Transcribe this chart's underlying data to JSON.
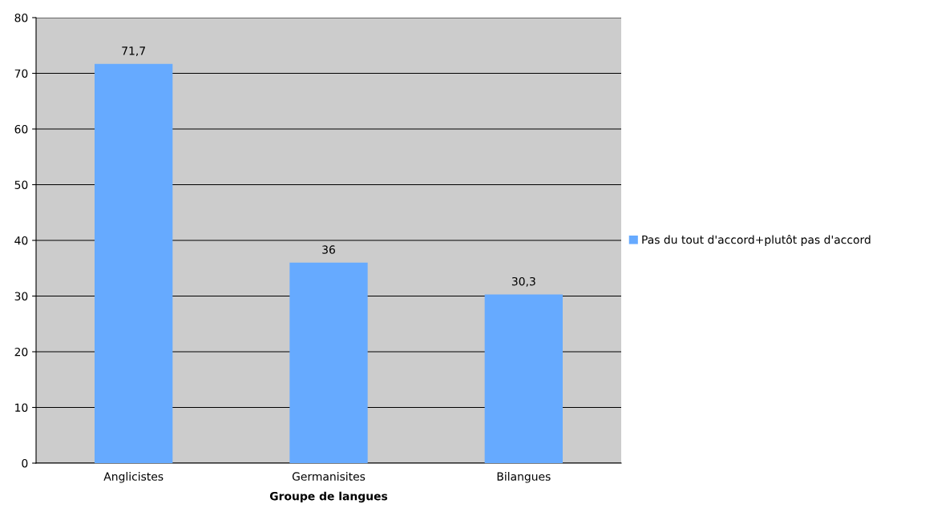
{
  "chart_data": {
    "type": "bar",
    "xlabel": "Groupe de langues",
    "categories": [
      "Anglicistes",
      "Germanisites",
      "Bilangues"
    ],
    "series": [
      {
        "name": "Pas du tout d'accord+plutôt pas d'accord",
        "color": "#66aaff",
        "values": [
          71.7,
          36,
          30.3
        ],
        "value_labels": [
          "71,7",
          "36",
          "30,3"
        ]
      }
    ],
    "ylim": [
      0,
      80
    ],
    "yticks": [
      0,
      10,
      20,
      30,
      40,
      50,
      60,
      70,
      80
    ],
    "grid": "y",
    "legend": "right"
  }
}
